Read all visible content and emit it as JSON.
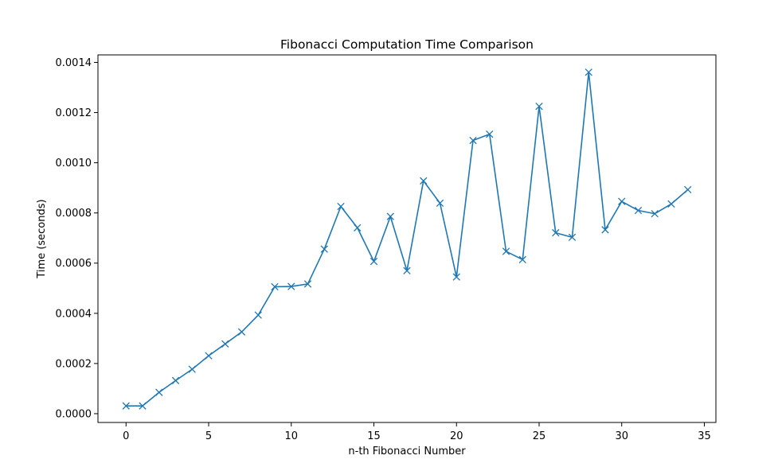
{
  "chart_data": {
    "type": "line",
    "title": "Fibonacci Computation Time Comparison",
    "xlabel": "n-th Fibonacci Number",
    "ylabel": "Time (seconds)",
    "xlim": [
      -1.7,
      35.7
    ],
    "ylim": [
      -3.5e-05,
      0.00143
    ],
    "xticks": [
      0,
      5,
      10,
      15,
      20,
      25,
      30,
      35
    ],
    "xtick_labels": [
      "0",
      "5",
      "10",
      "15",
      "20",
      "25",
      "30",
      "35"
    ],
    "yticks": [
      0.0,
      0.0002,
      0.0004,
      0.0006,
      0.0008,
      0.001,
      0.0012,
      0.0014
    ],
    "ytick_labels": [
      "0.0000",
      "0.0002",
      "0.0004",
      "0.0006",
      "0.0008",
      "0.0010",
      "0.0012",
      "0.0014"
    ],
    "grid": false,
    "legend": false,
    "series": [
      {
        "color": "#1f77b4",
        "marker": "x",
        "x": [
          0,
          1,
          2,
          3,
          4,
          5,
          6,
          7,
          8,
          9,
          10,
          11,
          12,
          13,
          14,
          15,
          16,
          17,
          18,
          19,
          20,
          21,
          22,
          23,
          24,
          25,
          26,
          27,
          28,
          29,
          30,
          31,
          32,
          33,
          34
        ],
        "y": [
          3.1e-05,
          3.1e-05,
          8.5e-05,
          0.000132,
          0.000177,
          0.000231,
          0.000278,
          0.000326,
          0.000393,
          0.000506,
          0.000507,
          0.000517,
          0.000656,
          0.000826,
          0.000741,
          0.000607,
          0.000786,
          0.00057,
          0.000928,
          0.000839,
          0.000545,
          0.001089,
          0.001114,
          0.000647,
          0.000614,
          0.001225,
          0.000721,
          0.000703,
          0.001361,
          0.000733,
          0.000846,
          0.00081,
          0.000797,
          0.000836,
          0.000893
        ]
      }
    ]
  }
}
